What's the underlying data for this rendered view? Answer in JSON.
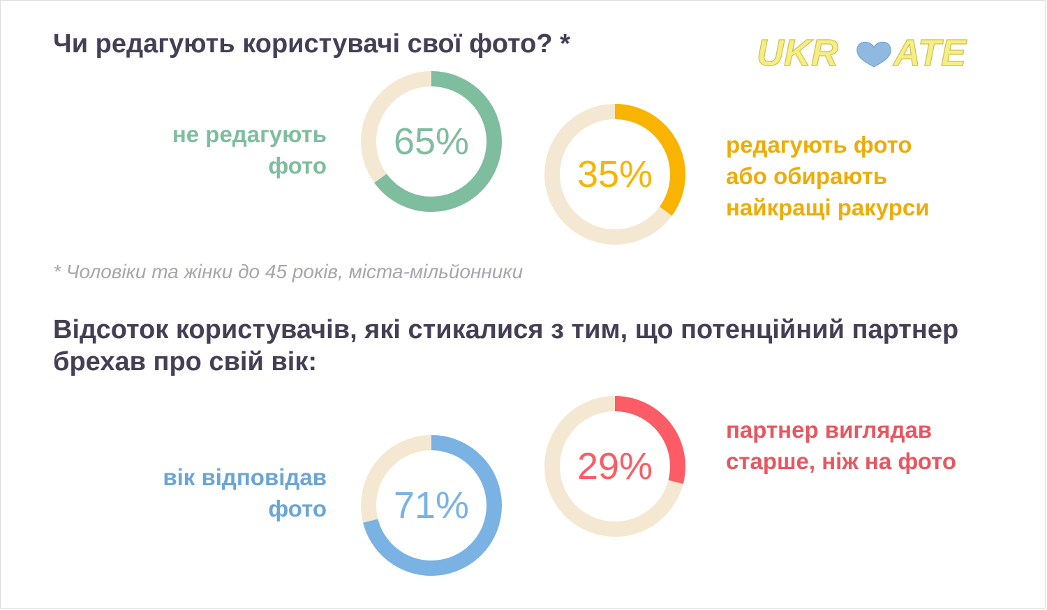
{
  "title1": "Чи редагують користувачі свої фото? *",
  "note": "* Чоловіки та жінки до 45 років, міста-мільйонники",
  "title2": "Відсоток користувачів, які стикалися з тим, що потенційний партнер брехав про свій вік:",
  "logo": {
    "part1": "UKR",
    "part2": "ATE",
    "text_color": "#f7ee83",
    "heart_color": "#8fb9e1"
  },
  "chart_data": [
    {
      "type": "pie",
      "values": [
        65
      ],
      "value_label": "65%",
      "label_lines": [
        "не редагують",
        "фото"
      ],
      "color": "#7fbd9f",
      "track_color": "#f4e8d2"
    },
    {
      "type": "pie",
      "values": [
        35
      ],
      "value_label": "35%",
      "label_lines": [
        "редагують фото",
        "або обирають",
        "найкращі ракурси"
      ],
      "color": "#f8b401",
      "track_color": "#f4e8d2"
    },
    {
      "type": "pie",
      "values": [
        71
      ],
      "value_label": "71%",
      "label_lines": [
        "вік відповідав",
        "фото"
      ],
      "color": "#7ab3e3",
      "track_color": "#f4e8d2"
    },
    {
      "type": "pie",
      "values": [
        29
      ],
      "value_label": "29%",
      "label_lines": [
        "партнер виглядав",
        "старше, ніж на фото"
      ],
      "color": "#fb5c65",
      "track_color": "#f4e8d2"
    }
  ]
}
